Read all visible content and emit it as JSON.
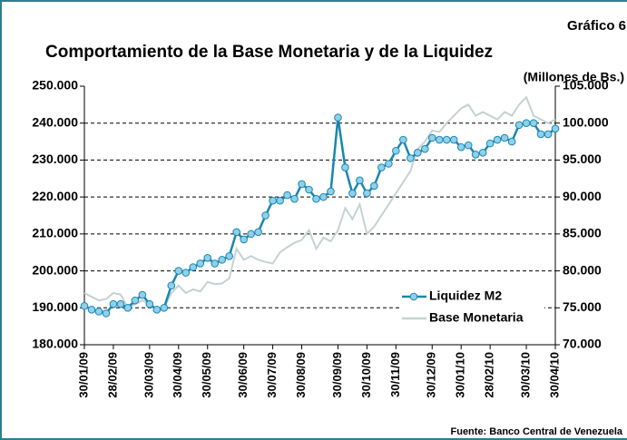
{
  "chart_data": {
    "type": "line",
    "label": "Gráfico 6",
    "title": "Comportamiento de la Base Monetaria y de la Liquidez",
    "subtitle": "(Millones de Bs.)",
    "source": "Fuente: Banco Central de Venezuela",
    "categories": [
      "30/01/09",
      null,
      null,
      null,
      "28/02/09",
      null,
      null,
      null,
      null,
      "30/03/09",
      null,
      null,
      null,
      "30/04/09",
      null,
      null,
      null,
      "30/05/09",
      null,
      null,
      null,
      null,
      "30/06/09",
      null,
      null,
      null,
      "30/07/09",
      null,
      null,
      null,
      "30/08/09",
      null,
      null,
      null,
      null,
      "30/09/09",
      null,
      null,
      null,
      "30/10/09",
      null,
      null,
      null,
      "30/11/09",
      null,
      null,
      null,
      null,
      "30/12/09",
      null,
      null,
      null,
      "30/01/10",
      null,
      null,
      null,
      "28/02/10",
      null,
      null,
      null,
      null,
      "30/03/10",
      null,
      null,
      null,
      "30/04/10"
    ],
    "series": [
      {
        "name": "Liquidez M2",
        "color": "#1a86b0",
        "marker_color": "#8fd0ea",
        "values": [
          190500,
          189500,
          189000,
          188500,
          191000,
          191000,
          190000,
          192000,
          193500,
          191000,
          189500,
          190000,
          196000,
          200000,
          199500,
          201000,
          202000,
          203500,
          202000,
          203000,
          204000,
          210500,
          208500,
          210000,
          210500,
          215000,
          219000,
          219000,
          220500,
          219500,
          223500,
          222000,
          219500,
          220000,
          221500,
          241500,
          228000,
          221000,
          224500,
          221000,
          223000,
          228000,
          229000,
          232500,
          235500,
          230500,
          232000,
          233000,
          236000,
          235500,
          235500,
          235500,
          233500,
          234000,
          231500,
          232000,
          234500,
          235500,
          236000,
          235000,
          239500,
          240000,
          240000,
          237000,
          237000,
          238500
        ]
      },
      {
        "name": "Base Monetaria",
        "color": "#c5d2d3",
        "axis": "y2",
        "values": [
          77000,
          76500,
          76000,
          76200,
          77000,
          76800,
          75000,
          75500,
          76000,
          75500,
          74500,
          75000,
          77000,
          78000,
          77000,
          77500,
          77200,
          78500,
          78200,
          78300,
          79000,
          83000,
          81500,
          82000,
          81500,
          81200,
          81000,
          82500,
          83200,
          83800,
          84200,
          85500,
          83000,
          84500,
          84000,
          85500,
          88500,
          87000,
          89000,
          85000,
          86000,
          87500,
          89000,
          90500,
          92000,
          93500,
          96500,
          97500,
          99000,
          98800,
          100000,
          101000,
          102000,
          102500,
          101000,
          101500,
          101000,
          100500,
          101500,
          101000,
          102500,
          103500,
          101000,
          100500,
          100000,
          100500
        ]
      }
    ],
    "ylim": [
      180000,
      250000
    ],
    "yticks": [
      {
        "value": 180000,
        "label": "180.000"
      },
      {
        "value": 190000,
        "label": "190.000"
      },
      {
        "value": 200000,
        "label": "200.000"
      },
      {
        "value": 210000,
        "label": "210.000"
      },
      {
        "value": 220000,
        "label": "220.000"
      },
      {
        "value": 230000,
        "label": "230.000"
      },
      {
        "value": 240000,
        "label": "240.000"
      },
      {
        "value": 250000,
        "label": "250.000"
      }
    ],
    "y2lim": [
      70000,
      105000
    ],
    "y2ticks": [
      {
        "value": 70000,
        "label": "70.000"
      },
      {
        "value": 75000,
        "label": "75.000"
      },
      {
        "value": 80000,
        "label": "80.000"
      },
      {
        "value": 85000,
        "label": "85.000"
      },
      {
        "value": 90000,
        "label": "90.000"
      },
      {
        "value": 95000,
        "label": "95.000"
      },
      {
        "value": 100000,
        "label": "100.000"
      },
      {
        "value": 105000,
        "label": "105.000"
      }
    ],
    "grid": true,
    "legend": "lower right"
  }
}
